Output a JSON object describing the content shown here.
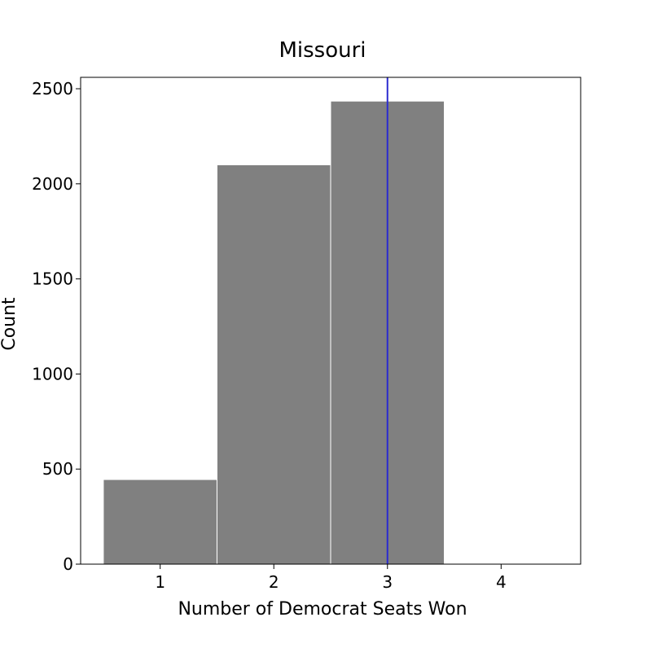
{
  "chart_data": {
    "type": "bar",
    "title": "Missouri",
    "xlabel": "Number of Democrat Seats Won",
    "ylabel": "Count",
    "categories": [
      1,
      2,
      3,
      4
    ],
    "values": [
      445,
      2100,
      2435,
      0
    ],
    "xlim": [
      0.3,
      4.7
    ],
    "ylim": [
      0,
      2560
    ],
    "xticks": [
      1,
      2,
      3,
      4
    ],
    "yticks": [
      0,
      500,
      1000,
      1500,
      2000,
      2500
    ],
    "reference_line": {
      "x": 3,
      "color": "#2b2bd0"
    },
    "bar_color": "#808080",
    "grid": false,
    "legend": "none"
  }
}
